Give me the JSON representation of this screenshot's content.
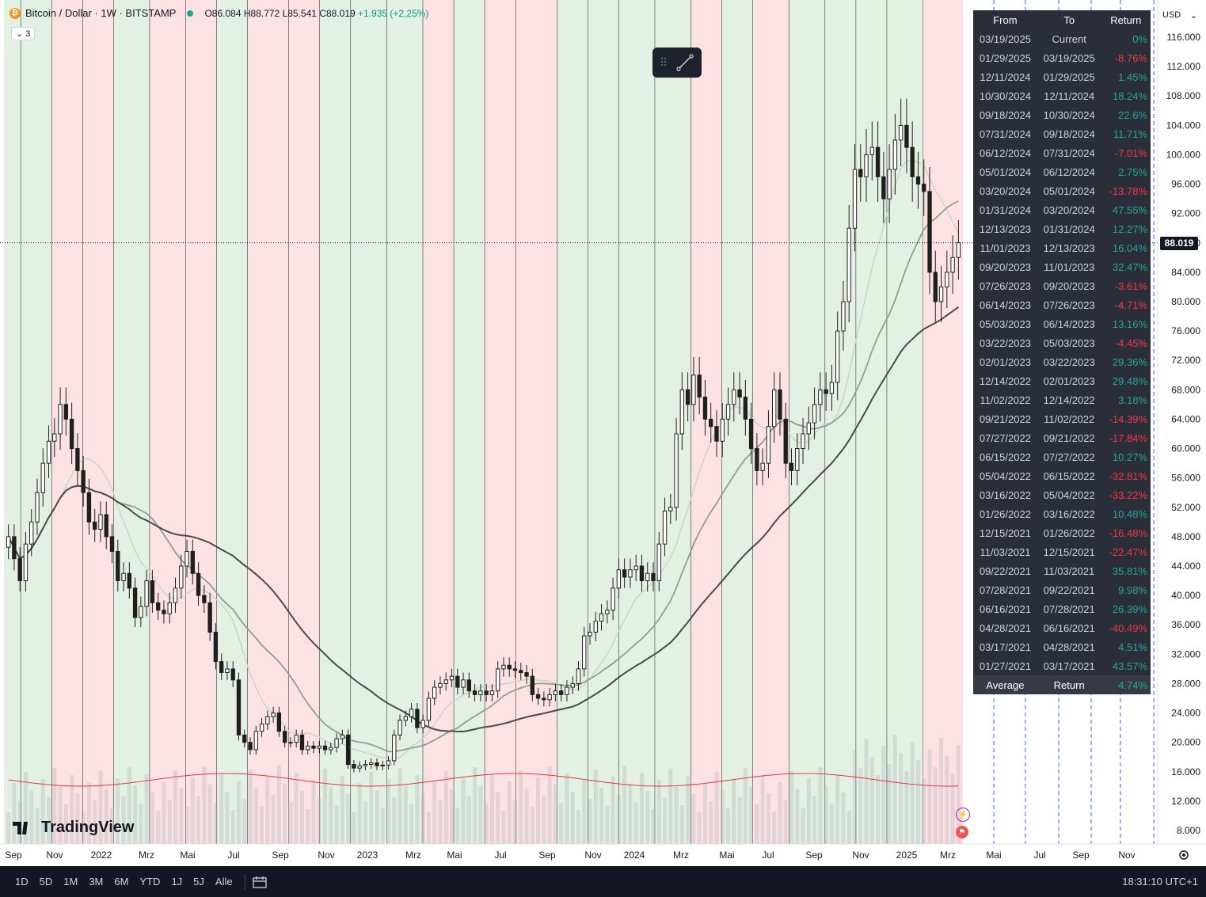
{
  "legend": {
    "icon": "bitcoin-icon",
    "symbol": "Bitcoin / Dollar · 1W · BITSTAMP",
    "open": "O86.084",
    "high": "H88.772",
    "low": "L85.541",
    "close": "C88.019",
    "change": "+1.935 (+2,25%)",
    "collapse_label": "3"
  },
  "currency": "USD",
  "current_price_label": "88.019",
  "brand": "TradingView",
  "returns_table": {
    "headers": [
      "From",
      "To",
      "Return"
    ],
    "rows": [
      [
        "03/19/2025",
        "Current",
        "0%"
      ],
      [
        "01/29/2025",
        "03/19/2025",
        "-8.76%"
      ],
      [
        "12/11/2024",
        "01/29/2025",
        "1.45%"
      ],
      [
        "10/30/2024",
        "12/11/2024",
        "18.24%"
      ],
      [
        "09/18/2024",
        "10/30/2024",
        "22.6%"
      ],
      [
        "07/31/2024",
        "09/18/2024",
        "11.71%"
      ],
      [
        "06/12/2024",
        "07/31/2024",
        "-7.01%"
      ],
      [
        "05/01/2024",
        "06/12/2024",
        "2.75%"
      ],
      [
        "03/20/2024",
        "05/01/2024",
        "-13.78%"
      ],
      [
        "01/31/2024",
        "03/20/2024",
        "47.55%"
      ],
      [
        "12/13/2023",
        "01/31/2024",
        "12.27%"
      ],
      [
        "11/01/2023",
        "12/13/2023",
        "16.04%"
      ],
      [
        "09/20/2023",
        "11/01/2023",
        "32.47%"
      ],
      [
        "07/26/2023",
        "09/20/2023",
        "-3.61%"
      ],
      [
        "06/14/2023",
        "07/26/2023",
        "-4.71%"
      ],
      [
        "05/03/2023",
        "06/14/2023",
        "13.16%"
      ],
      [
        "03/22/2023",
        "05/03/2023",
        "-4.45%"
      ],
      [
        "02/01/2023",
        "03/22/2023",
        "29.36%"
      ],
      [
        "12/14/2022",
        "02/01/2023",
        "29.48%"
      ],
      [
        "11/02/2022",
        "12/14/2022",
        "3.18%"
      ],
      [
        "09/21/2022",
        "11/02/2022",
        "-14.39%"
      ],
      [
        "07/27/2022",
        "09/21/2022",
        "-17.84%"
      ],
      [
        "06/15/2022",
        "07/27/2022",
        "10.27%"
      ],
      [
        "05/04/2022",
        "06/15/2022",
        "-32.81%"
      ],
      [
        "03/16/2022",
        "05/04/2022",
        "-33.22%"
      ],
      [
        "01/26/2022",
        "03/16/2022",
        "10.48%"
      ],
      [
        "12/15/2021",
        "01/26/2022",
        "-16.48%"
      ],
      [
        "11/03/2021",
        "12/15/2021",
        "-22.47%"
      ],
      [
        "09/22/2021",
        "11/03/2021",
        "35.81%"
      ],
      [
        "07/28/2021",
        "09/22/2021",
        "9.98%"
      ],
      [
        "06/16/2021",
        "07/28/2021",
        "26.39%"
      ],
      [
        "04/28/2021",
        "06/16/2021",
        "-40.49%"
      ],
      [
        "03/17/2021",
        "04/28/2021",
        "4.51%"
      ],
      [
        "01/27/2021",
        "03/17/2021",
        "43.57%"
      ]
    ],
    "footer": [
      "Average",
      "Return",
      "4.74%"
    ]
  },
  "bottom_bar": {
    "timeframes": [
      "1D",
      "5D",
      "1M",
      "3M",
      "6M",
      "YTD",
      "1J",
      "5J",
      "Alle"
    ],
    "clock": "18:31:10 UTC+1"
  },
  "colors": {
    "up_band": "#e3f1e3",
    "down_band": "#fde2e4",
    "candle_up": "#ffffff",
    "candle_down": "#1f1f1f",
    "positive": "#26a69a",
    "negative": "#f23645"
  },
  "chart_data": {
    "type": "candlestick",
    "title": "Bitcoin / Dollar · 1W · BITSTAMP",
    "x_tick_labels": [
      "Sep",
      "Nov",
      "2022",
      "Mrz",
      "Mai",
      "Jul",
      "Sep",
      "Nov",
      "2023",
      "Mrz",
      "Mai",
      "Jul",
      "Sep",
      "Nov",
      "2024",
      "Mrz",
      "Mai",
      "Jul",
      "Sep",
      "Nov",
      "2025",
      "Mrz",
      "Mai",
      "Jul",
      "Sep",
      "Nov"
    ],
    "y_tick_labels": [
      "116.000",
      "112.000",
      "108.000",
      "104.000",
      "100.000",
      "96.000",
      "92.000",
      "88.000",
      "84.000",
      "80.000",
      "76.000",
      "72.000",
      "68.000",
      "64.000",
      "60.000",
      "56.000",
      "52.000",
      "48.000",
      "44.000",
      "40.000",
      "36.000",
      "32.000",
      "28.000",
      "24.000",
      "20.000",
      "16.000",
      "12.000",
      "8.000"
    ],
    "ylim": [
      6000,
      118000
    ],
    "periods": [
      {
        "from": "2021-03-17",
        "to": "2021-04-28",
        "return_pct": 4.51
      },
      {
        "from": "2021-04-28",
        "to": "2021-06-16",
        "return_pct": -40.49
      },
      {
        "from": "2021-06-16",
        "to": "2021-07-28",
        "return_pct": 26.39
      },
      {
        "from": "2021-07-28",
        "to": "2021-09-22",
        "return_pct": 9.98
      },
      {
        "from": "2021-09-22",
        "to": "2021-11-03",
        "return_pct": 35.81
      },
      {
        "from": "2021-11-03",
        "to": "2021-12-15",
        "return_pct": -22.47
      },
      {
        "from": "2021-12-15",
        "to": "2022-01-26",
        "return_pct": -16.48
      },
      {
        "from": "2022-01-26",
        "to": "2022-03-16",
        "return_pct": 10.48
      },
      {
        "from": "2022-03-16",
        "to": "2022-05-04",
        "return_pct": -33.22
      },
      {
        "from": "2022-05-04",
        "to": "2022-06-15",
        "return_pct": -32.81
      },
      {
        "from": "2022-06-15",
        "to": "2022-07-27",
        "return_pct": 10.27
      },
      {
        "from": "2022-07-27",
        "to": "2022-09-21",
        "return_pct": -17.84
      },
      {
        "from": "2022-09-21",
        "to": "2022-11-02",
        "return_pct": -14.39
      },
      {
        "from": "2022-11-02",
        "to": "2022-12-14",
        "return_pct": 3.18
      },
      {
        "from": "2022-12-14",
        "to": "2023-02-01",
        "return_pct": 29.48
      },
      {
        "from": "2023-02-01",
        "to": "2023-03-22",
        "return_pct": 29.36
      },
      {
        "from": "2023-03-22",
        "to": "2023-05-03",
        "return_pct": -4.45
      },
      {
        "from": "2023-05-03",
        "to": "2023-06-14",
        "return_pct": 13.16
      },
      {
        "from": "2023-06-14",
        "to": "2023-07-26",
        "return_pct": -4.71
      },
      {
        "from": "2023-07-26",
        "to": "2023-09-20",
        "return_pct": -3.61
      },
      {
        "from": "2023-09-20",
        "to": "2023-11-01",
        "return_pct": 32.47
      },
      {
        "from": "2023-11-01",
        "to": "2023-12-13",
        "return_pct": 16.04
      },
      {
        "from": "2023-12-13",
        "to": "2024-01-31",
        "return_pct": 12.27
      },
      {
        "from": "2024-01-31",
        "to": "2024-03-20",
        "return_pct": 47.55
      },
      {
        "from": "2024-03-20",
        "to": "2024-05-01",
        "return_pct": -13.78
      },
      {
        "from": "2024-05-01",
        "to": "2024-06-12",
        "return_pct": 2.75
      },
      {
        "from": "2024-06-12",
        "to": "2024-07-31",
        "return_pct": -7.01
      },
      {
        "from": "2024-07-31",
        "to": "2024-09-18",
        "return_pct": 11.71
      },
      {
        "from": "2024-09-18",
        "to": "2024-10-30",
        "return_pct": 22.6
      },
      {
        "from": "2024-10-30",
        "to": "2024-12-11",
        "return_pct": 18.24
      },
      {
        "from": "2024-12-11",
        "to": "2025-01-29",
        "return_pct": 1.45
      },
      {
        "from": "2025-01-29",
        "to": "2025-03-19",
        "return_pct": -8.76
      }
    ],
    "weekly_close": [
      [
        48000,
        -1
      ],
      [
        45000,
        -1
      ],
      [
        42000,
        -1
      ],
      [
        47000,
        1
      ],
      [
        50000,
        1
      ],
      [
        54000,
        1
      ],
      [
        58000,
        1
      ],
      [
        61000,
        1
      ],
      [
        62000,
        1
      ],
      [
        66000,
        1
      ],
      [
        64000,
        -1
      ],
      [
        60000,
        -1
      ],
      [
        57000,
        -1
      ],
      [
        54000,
        -1
      ],
      [
        50000,
        -1
      ],
      [
        49000,
        -1
      ],
      [
        51000,
        1
      ],
      [
        48000,
        -1
      ],
      [
        46000,
        -1
      ],
      [
        42000,
        -1
      ],
      [
        43000,
        1
      ],
      [
        41000,
        -1
      ],
      [
        37000,
        -1
      ],
      [
        38500,
        1
      ],
      [
        42000,
        1
      ],
      [
        39000,
        -1
      ],
      [
        38000,
        -1
      ],
      [
        37500,
        -1
      ],
      [
        39000,
        1
      ],
      [
        41000,
        1
      ],
      [
        44000,
        1
      ],
      [
        46000,
        1
      ],
      [
        43000,
        -1
      ],
      [
        40000,
        -1
      ],
      [
        39000,
        -1
      ],
      [
        35000,
        -1
      ],
      [
        31000,
        -1
      ],
      [
        29500,
        -1
      ],
      [
        30000,
        1
      ],
      [
        28500,
        -1
      ],
      [
        21000,
        -1
      ],
      [
        20000,
        -1
      ],
      [
        19000,
        -1
      ],
      [
        21500,
        1
      ],
      [
        22500,
        1
      ],
      [
        23500,
        1
      ],
      [
        24000,
        1
      ],
      [
        21500,
        -1
      ],
      [
        20000,
        -1
      ],
      [
        20000,
        1
      ],
      [
        21000,
        1
      ],
      [
        19000,
        -1
      ],
      [
        19500,
        1
      ],
      [
        19200,
        -1
      ],
      [
        19500,
        1
      ],
      [
        19000,
        -1
      ],
      [
        19300,
        1
      ],
      [
        20500,
        1
      ],
      [
        21000,
        1
      ],
      [
        17000,
        -1
      ],
      [
        16500,
        -1
      ],
      [
        16800,
        1
      ],
      [
        17000,
        1
      ],
      [
        17200,
        1
      ],
      [
        16800,
        -1
      ],
      [
        16900,
        1
      ],
      [
        17500,
        1
      ],
      [
        21000,
        1
      ],
      [
        23000,
        1
      ],
      [
        23500,
        1
      ],
      [
        24500,
        1
      ],
      [
        22000,
        -1
      ],
      [
        23000,
        1
      ],
      [
        26000,
        1
      ],
      [
        27500,
        1
      ],
      [
        28000,
        1
      ],
      [
        28500,
        1
      ],
      [
        29000,
        1
      ],
      [
        27500,
        -1
      ],
      [
        28500,
        1
      ],
      [
        27000,
        -1
      ],
      [
        26500,
        -1
      ],
      [
        27000,
        1
      ],
      [
        26500,
        -1
      ],
      [
        27000,
        1
      ],
      [
        30000,
        1
      ],
      [
        30500,
        1
      ],
      [
        30000,
        -1
      ],
      [
        29800,
        -1
      ],
      [
        29500,
        -1
      ],
      [
        29000,
        -1
      ],
      [
        26500,
        -1
      ],
      [
        26000,
        -1
      ],
      [
        25800,
        -1
      ],
      [
        26500,
        1
      ],
      [
        27000,
        1
      ],
      [
        26500,
        -1
      ],
      [
        27500,
        1
      ],
      [
        28000,
        1
      ],
      [
        30000,
        1
      ],
      [
        34500,
        1
      ],
      [
        35000,
        1
      ],
      [
        36500,
        1
      ],
      [
        37500,
        1
      ],
      [
        38000,
        1
      ],
      [
        41000,
        1
      ],
      [
        43500,
        1
      ],
      [
        42500,
        -1
      ],
      [
        43500,
        1
      ],
      [
        44000,
        1
      ],
      [
        42000,
        -1
      ],
      [
        43000,
        1
      ],
      [
        42000,
        -1
      ],
      [
        47000,
        1
      ],
      [
        51500,
        1
      ],
      [
        52000,
        1
      ],
      [
        62000,
        1
      ],
      [
        68000,
        1
      ],
      [
        66000,
        -1
      ],
      [
        70000,
        1
      ],
      [
        67000,
        -1
      ],
      [
        64000,
        -1
      ],
      [
        63000,
        -1
      ],
      [
        61000,
        -1
      ],
      [
        64000,
        1
      ],
      [
        66000,
        1
      ],
      [
        68000,
        1
      ],
      [
        67000,
        -1
      ],
      [
        64000,
        -1
      ],
      [
        60000,
        -1
      ],
      [
        57000,
        -1
      ],
      [
        58000,
        1
      ],
      [
        63000,
        1
      ],
      [
        68000,
        1
      ],
      [
        64000,
        -1
      ],
      [
        58000,
        -1
      ],
      [
        57000,
        1
      ],
      [
        60000,
        1
      ],
      [
        62000,
        1
      ],
      [
        63500,
        1
      ],
      [
        66000,
        1
      ],
      [
        68000,
        1
      ],
      [
        67500,
        -1
      ],
      [
        69000,
        1
      ],
      [
        76000,
        1
      ],
      [
        80000,
        1
      ],
      [
        90000,
        1
      ],
      [
        98000,
        1
      ],
      [
        97000,
        -1
      ],
      [
        100000,
        1
      ],
      [
        101000,
        1
      ],
      [
        97000,
        -1
      ],
      [
        94000,
        -1
      ],
      [
        98000,
        1
      ],
      [
        102000,
        1
      ],
      [
        104000,
        1
      ],
      [
        101000,
        -1
      ],
      [
        97000,
        -1
      ],
      [
        96000,
        -1
      ],
      [
        95000,
        -1
      ],
      [
        84000,
        -1
      ],
      [
        80000,
        -1
      ],
      [
        82000,
        1
      ],
      [
        84000,
        1
      ],
      [
        86000,
        1
      ],
      [
        88019,
        1
      ]
    ]
  }
}
